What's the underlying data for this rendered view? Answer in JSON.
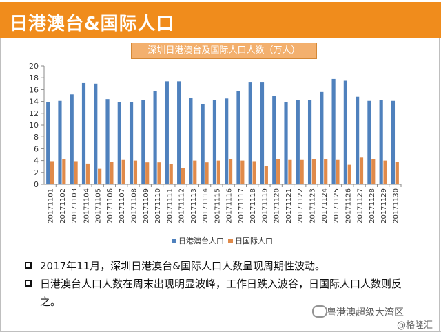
{
  "page": {
    "title": "日港澳台&国际人口"
  },
  "chart_data": {
    "type": "bar",
    "title": "深圳日港澳台及国际人口人数（万人）",
    "categories": [
      "20171101",
      "20171102",
      "20171103",
      "20171104",
      "20171105",
      "20171106",
      "20171107",
      "20171108",
      "20171109",
      "20171110",
      "20171111",
      "20171112",
      "20171113",
      "20171114",
      "20171115",
      "20171116",
      "20171117",
      "20171118",
      "20171119",
      "20171120",
      "20171121",
      "20171122",
      "20171123",
      "20171124",
      "20171125",
      "20171126",
      "20171127",
      "20171128",
      "20171129",
      "20171130"
    ],
    "series": [
      {
        "name": "日港澳台人口",
        "color": "#4f81bd",
        "values": [
          13.9,
          14.1,
          15.2,
          17.1,
          17.0,
          14.4,
          13.9,
          13.9,
          14.3,
          15.8,
          17.4,
          17.4,
          14.6,
          13.6,
          14.3,
          14.5,
          15.7,
          17.2,
          17.2,
          14.9,
          13.9,
          14.2,
          14.2,
          15.6,
          17.8,
          17.5,
          14.8,
          14.1,
          14.2,
          14.1
        ]
      },
      {
        "name": "日国际人口",
        "color": "#e08a4a",
        "values": [
          3.9,
          4.2,
          3.9,
          3.5,
          2.6,
          3.8,
          4.1,
          4.0,
          3.7,
          3.7,
          3.4,
          2.7,
          4.0,
          3.7,
          4.0,
          4.3,
          4.0,
          3.9,
          3.1,
          4.2,
          4.1,
          4.1,
          4.3,
          4.2,
          4.1,
          3.3,
          4.5,
          4.3,
          4.0,
          3.8
        ]
      }
    ],
    "ylim": [
      0,
      20
    ],
    "yticks": [
      0,
      2,
      4,
      6,
      8,
      10,
      12,
      14,
      16,
      18,
      20
    ],
    "grid": false,
    "legend": "bottom"
  },
  "bullets": [
    "2017年11月，深圳日港澳台&国际人口人数呈现周期性波动。",
    "日港澳台人口人数在周末出现明显波峰，工作日跌入波谷，日国际人口人数则反之。"
  ],
  "watermark": {
    "text": "粤港澳超级大湾区",
    "author": "@格隆汇"
  }
}
